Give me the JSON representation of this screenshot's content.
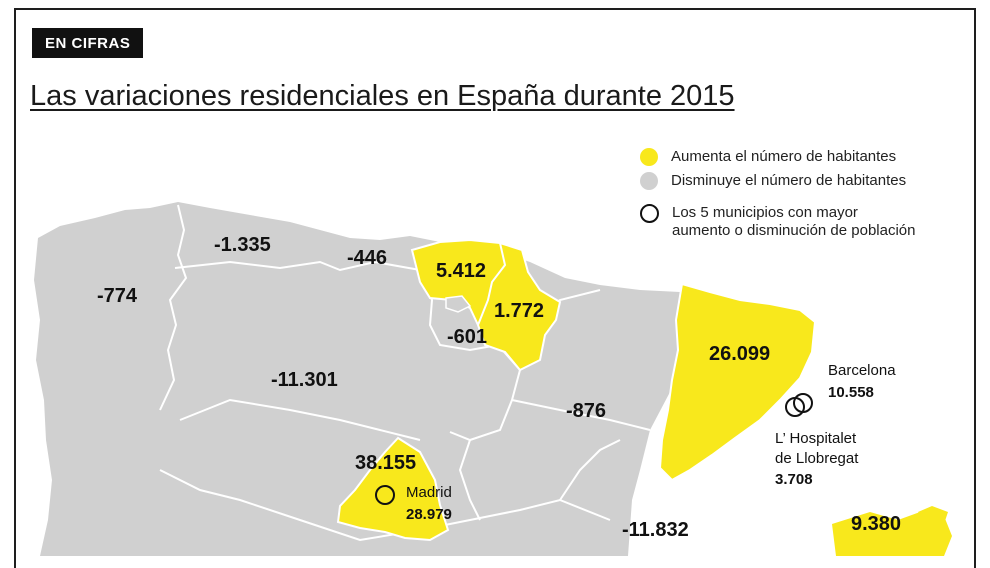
{
  "badge": "EN CIFRAS",
  "title": "Las variaciones residenciales en España durante 2015",
  "colors": {
    "increase": "#f8e81c",
    "decrease": "#d0d0d0",
    "border": "#ffffff",
    "frame": "#1e1e1e"
  },
  "legend": {
    "increase": "Aumenta el número de habitantes",
    "decrease": "Disminuye el número de habitantes",
    "municipios_line1": "Los 5 municipios con mayor",
    "municipios_line2": "aumento o disminución de población"
  },
  "regions": [
    {
      "name": "Galicia",
      "value": "-774",
      "status": "decrease"
    },
    {
      "name": "Asturias",
      "value": "-1.335",
      "status": "decrease"
    },
    {
      "name": "Cantabria",
      "value": "-446",
      "status": "decrease"
    },
    {
      "name": "País Vasco",
      "value": "5.412",
      "status": "increase"
    },
    {
      "name": "Navarra",
      "value": "1.772",
      "status": "increase"
    },
    {
      "name": "La Rioja",
      "value": "-601",
      "status": "decrease"
    },
    {
      "name": "Castilla y León",
      "value": "-11.301",
      "status": "decrease"
    },
    {
      "name": "Aragón",
      "value": "-876",
      "status": "decrease"
    },
    {
      "name": "Cataluña",
      "value": "26.099",
      "status": "increase"
    },
    {
      "name": "Comunidad de Madrid",
      "value": "38.155",
      "status": "increase"
    },
    {
      "name": "Castilla-La Mancha",
      "value": "-11.832",
      "status": "decrease"
    },
    {
      "name": "Islas Baleares",
      "value": "9.380",
      "status": "increase"
    }
  ],
  "municipios": [
    {
      "name": "Barcelona",
      "value": "10.558"
    },
    {
      "name_line1": "L’ Hospitalet",
      "name_line2": "de Llobregat",
      "value": "3.708"
    },
    {
      "name": "Madrid",
      "value": "28.979"
    }
  ]
}
